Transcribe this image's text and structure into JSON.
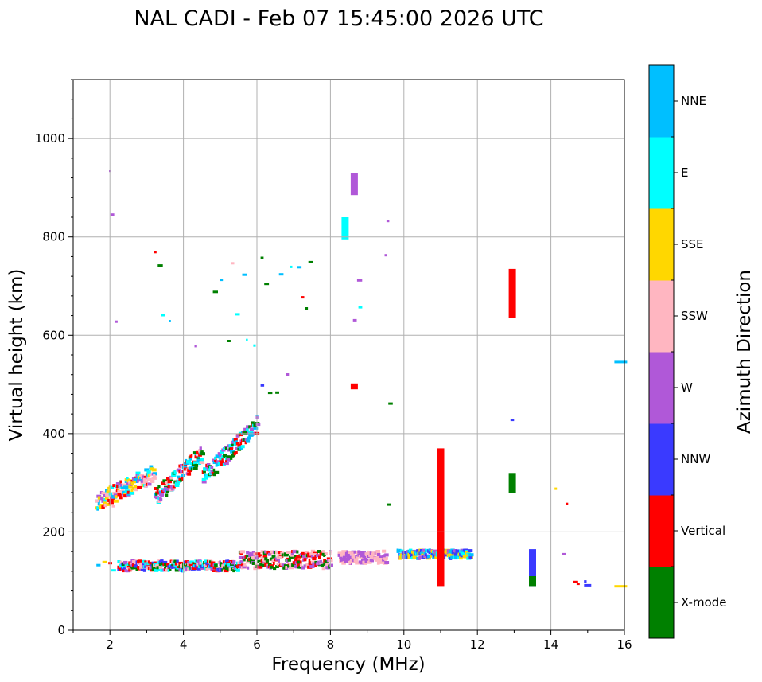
{
  "chart_data": {
    "type": "scatter",
    "title": "NAL CADI - Feb 07 15:45:00 2026 UTC",
    "xlabel": "Frequency (MHz)",
    "ylabel": "Virtual height (km)",
    "xlim": [
      1,
      16
    ],
    "ylim": [
      0,
      1120
    ],
    "xticks": [
      2,
      4,
      6,
      8,
      10,
      12,
      14,
      16
    ],
    "yticks": [
      0,
      200,
      400,
      600,
      800,
      1000
    ],
    "grid": true,
    "colorbar": {
      "label": "Azimuth Direction",
      "categories": [
        "X-mode",
        "Vertical",
        "NNW",
        "W",
        "SSW",
        "SSE",
        "E",
        "NNE"
      ],
      "colors": {
        "X-mode": "#008000",
        "Vertical": "#ff0000",
        "NNW": "#3a3aff",
        "W": "#b058d8",
        "SSW": "#ffb6c1",
        "SSE": "#ffd700",
        "E": "#00ffff",
        "NNE": "#00bfff"
      }
    },
    "bands": [
      {
        "x0": 1.55,
        "x1": 2.2,
        "y0": 115,
        "y1": 140,
        "dir": [
          "X-mode",
          "Vertical",
          "NNW",
          "W",
          "SSW",
          "SSE",
          "E",
          "NNE"
        ]
      },
      {
        "x0": 2.2,
        "x1": 5.5,
        "y0": 120,
        "y1": 140,
        "dir": [
          "X-mode",
          "Vertical",
          "NNW",
          "W",
          "SSW",
          "E"
        ]
      },
      {
        "x0": 5.5,
        "x1": 8.0,
        "y0": 125,
        "y1": 160,
        "dir": [
          "X-mode",
          "Vertical",
          "W",
          "SSW"
        ]
      },
      {
        "x0": 8.2,
        "x1": 9.5,
        "y0": 135,
        "y1": 160,
        "dir": [
          "W",
          "SSW"
        ]
      },
      {
        "x0": 9.8,
        "x1": 11.8,
        "y0": 145,
        "y1": 162,
        "dir": [
          "NNE",
          "NNW",
          "W",
          "SSE",
          "E"
        ]
      },
      {
        "x0": 1.6,
        "x1": 3.2,
        "y0": 260,
        "y1": 320,
        "dir": [
          "E",
          "NNE",
          "SSW",
          "W",
          "Vertical",
          "SSE"
        ]
      },
      {
        "x0": 3.2,
        "x1": 4.5,
        "y0": 270,
        "y1": 360,
        "dir": [
          "E",
          "NNE",
          "X-mode",
          "Vertical",
          "W",
          "SSW"
        ]
      },
      {
        "x0": 4.5,
        "x1": 6.0,
        "y0": 310,
        "y1": 420,
        "dir": [
          "E",
          "NNE",
          "X-mode",
          "Vertical",
          "W"
        ]
      },
      {
        "x0": 6.0,
        "x1": 6.9,
        "y0": 410,
        "y1": 540,
        "dir": [
          "E",
          "X-mode",
          "NNW",
          "W"
        ]
      },
      {
        "x0": 1.9,
        "x1": 2.2,
        "y0": 200,
        "y1": 1000,
        "dir": [
          "W",
          "Vertical",
          "SSW",
          "NNE",
          "NNW"
        ]
      },
      {
        "x0": 3.2,
        "x1": 7.5,
        "y0": 560,
        "y1": 780,
        "dir": [
          "X-mode",
          "Vertical",
          "SSW",
          "E",
          "NNE",
          "W"
        ]
      },
      {
        "x0": 9.4,
        "x1": 9.6,
        "y0": 80,
        "y1": 1000,
        "dir": [
          "X-mode",
          "W",
          "SSW",
          "Vertical",
          "NNE"
        ]
      },
      {
        "x0": 8.5,
        "x1": 8.8,
        "y0": 470,
        "y1": 940,
        "dir": [
          "W",
          "X-mode",
          "Vertical",
          "E"
        ]
      },
      {
        "x0": 12.6,
        "x1": 13.4,
        "y0": 260,
        "y1": 1010,
        "dir": [
          "W",
          "NNW",
          "SSE",
          "Vertical",
          "E"
        ]
      },
      {
        "x0": 13.9,
        "x1": 15.2,
        "y0": 90,
        "y1": 1000,
        "dir": [
          "SSE",
          "Vertical",
          "SSW",
          "E",
          "W",
          "NNW"
        ]
      }
    ],
    "features": [
      {
        "freq": 8.4,
        "hmin": 795,
        "hmax": 840,
        "dir": "E"
      },
      {
        "freq": 8.65,
        "hmin": 885,
        "hmax": 930,
        "dir": "W"
      },
      {
        "freq": 8.65,
        "hmin": 490,
        "hmax": 502,
        "dir": "Vertical"
      },
      {
        "freq": 11.0,
        "hmin": 90,
        "hmax": 370,
        "dir": "Vertical"
      },
      {
        "freq": 12.95,
        "hmin": 635,
        "hmax": 735,
        "dir": "Vertical"
      },
      {
        "freq": 12.95,
        "hmin": 280,
        "hmax": 320,
        "dir": "X-mode"
      },
      {
        "freq": 13.5,
        "hmin": 90,
        "hmax": 165,
        "dir": "NNW"
      },
      {
        "freq": 13.5,
        "hmin": 90,
        "hmax": 110,
        "dir": "X-mode"
      },
      {
        "freq": 15.9,
        "hmin": 545,
        "hmax": 548,
        "dir": "NNE"
      },
      {
        "freq": 15.9,
        "hmin": 89,
        "hmax": 92,
        "dir": "SSE"
      },
      {
        "freq": 15.0,
        "hmin": 90,
        "hmax": 94,
        "dir": "NNW"
      }
    ]
  }
}
